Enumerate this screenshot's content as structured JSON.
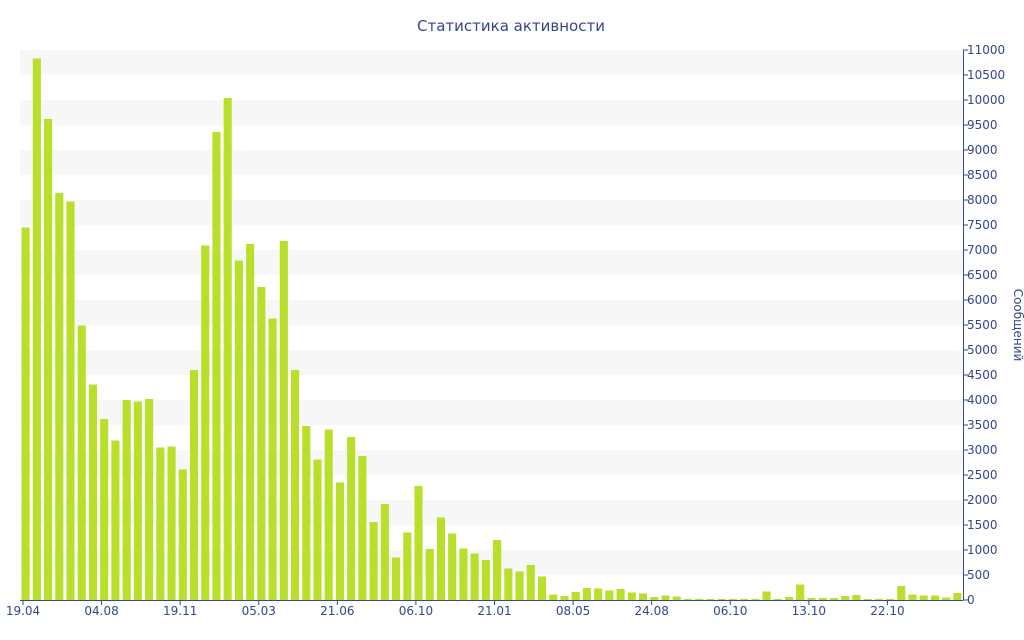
{
  "chart_data": {
    "type": "bar",
    "title": "Статистика активности",
    "xlabel": "",
    "ylabel": "Сообщений",
    "ylim": [
      0,
      11000
    ],
    "y_tick_step": 500,
    "y_axis_position": "right",
    "grid": "alternating-horizontal-bands",
    "legend": "none",
    "bar_color": "#b8df2a",
    "band_color": "#f7f7f7",
    "text_color": "#34468c",
    "x_tick_labels": [
      {
        "label": "19.04",
        "index": 0
      },
      {
        "label": "04.08",
        "index": 7
      },
      {
        "label": "19.11",
        "index": 14
      },
      {
        "label": "05.03",
        "index": 21
      },
      {
        "label": "21.06",
        "index": 28
      },
      {
        "label": "06.10",
        "index": 35
      },
      {
        "label": "21.01",
        "index": 42
      },
      {
        "label": "08.05",
        "index": 49
      },
      {
        "label": "24.08",
        "index": 56
      },
      {
        "label": "06.10",
        "index": 63
      },
      {
        "label": "13.10",
        "index": 70
      },
      {
        "label": "22.10",
        "index": 77
      }
    ],
    "values": [
      7450,
      10830,
      9620,
      8140,
      7970,
      5490,
      4310,
      3620,
      3190,
      4000,
      3970,
      4020,
      3050,
      3070,
      2610,
      4600,
      7090,
      9360,
      10040,
      6790,
      7120,
      6260,
      5630,
      7180,
      4600,
      3480,
      2810,
      3410,
      2350,
      3260,
      2880,
      1560,
      1920,
      850,
      1350,
      2280,
      1020,
      1650,
      1330,
      1030,
      930,
      800,
      1200,
      630,
      570,
      700,
      470,
      110,
      80,
      160,
      240,
      230,
      190,
      220,
      150,
      130,
      60,
      90,
      70,
      20,
      20,
      20,
      20,
      20,
      20,
      20,
      170,
      20,
      60,
      310,
      40,
      40,
      40,
      80,
      100,
      20,
      20,
      20,
      280,
      110,
      90,
      90,
      50,
      140
    ]
  }
}
